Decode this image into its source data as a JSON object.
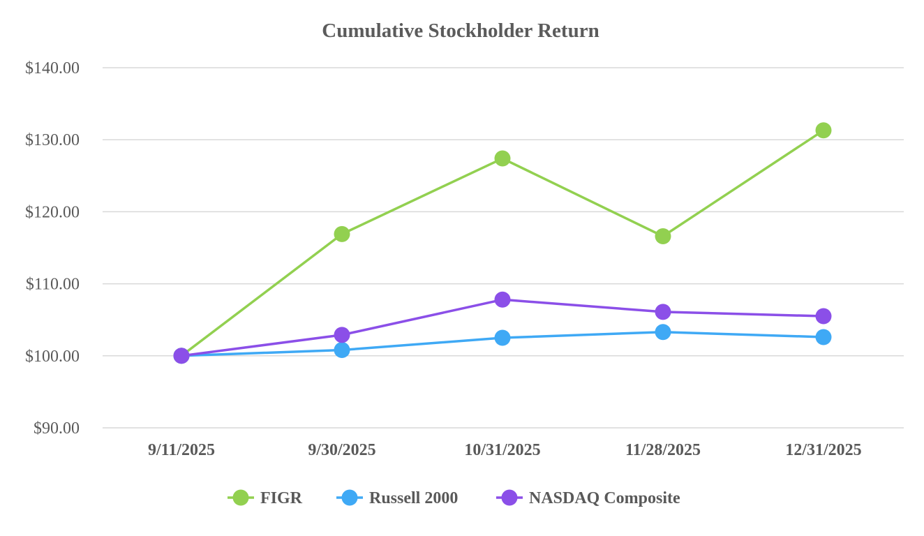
{
  "chart_data": {
    "type": "line",
    "title": "Cumulative Stockholder Return",
    "xlabel": "",
    "ylabel": "",
    "categories": [
      "9/11/2025",
      "9/30/2025",
      "10/31/2025",
      "11/28/2025",
      "12/31/2025"
    ],
    "ylim": [
      90,
      140
    ],
    "yticks": [
      90,
      100,
      110,
      120,
      130,
      140
    ],
    "ytick_labels": [
      "$90.00",
      "$100.00",
      "$110.00",
      "$120.00",
      "$130.00",
      "$140.00"
    ],
    "grid": true,
    "legend_position": "bottom",
    "series": [
      {
        "name": "FIGR",
        "color": "#92d050",
        "values": [
          100.0,
          116.9,
          127.4,
          116.6,
          131.3
        ]
      },
      {
        "name": "Russell 2000",
        "color": "#3fa9f5",
        "values": [
          100.0,
          100.8,
          102.5,
          103.3,
          102.6
        ]
      },
      {
        "name": "NASDAQ Composite",
        "color": "#8b4fe8",
        "values": [
          100.0,
          102.9,
          107.8,
          106.1,
          105.5
        ]
      }
    ]
  }
}
